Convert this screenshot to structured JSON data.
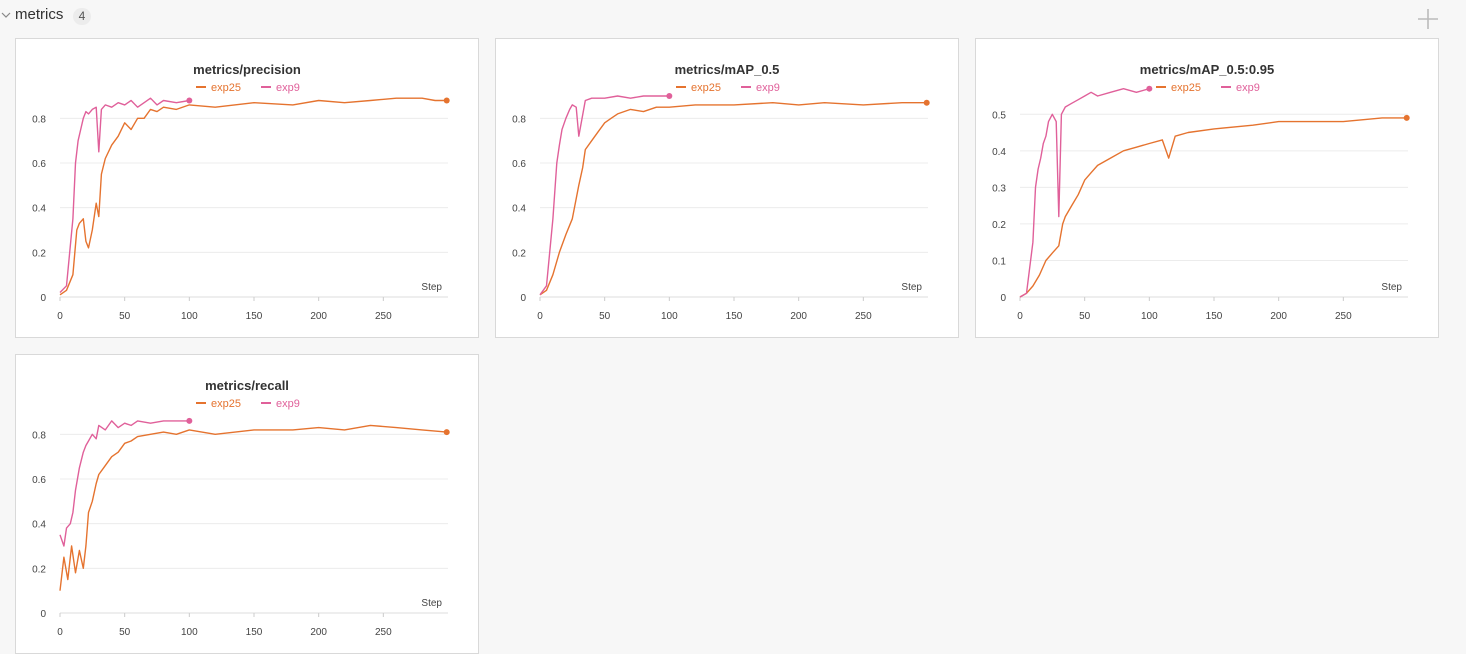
{
  "section": {
    "title": "metrics",
    "count": "4"
  },
  "colors": {
    "exp25": "#e5732f",
    "exp9": "#e0609a",
    "grid": "#ececec"
  },
  "icons": {
    "collapse": "chevron-down-icon",
    "add": "plus-icon"
  },
  "chart_data": [
    {
      "type": "line",
      "title": "metrics/precision",
      "xlabel": "Step",
      "xlim": [
        0,
        300
      ],
      "ylim": [
        0,
        0.9
      ],
      "xticks": [
        0,
        50,
        100,
        150,
        200,
        250
      ],
      "yticks": [
        0,
        0.2,
        0.4,
        0.6,
        0.8
      ],
      "ytick_labels": [
        "0",
        "0.2",
        "0.4",
        "0.6",
        "0.8"
      ],
      "legend": [
        "exp25",
        "exp9"
      ],
      "series": [
        {
          "name": "exp25",
          "x": [
            0,
            5,
            10,
            13,
            15,
            18,
            20,
            22,
            25,
            28,
            30,
            32,
            35,
            40,
            45,
            50,
            55,
            60,
            65,
            70,
            75,
            80,
            90,
            100,
            120,
            150,
            180,
            200,
            220,
            240,
            260,
            280,
            290,
            299
          ],
          "y": [
            0.01,
            0.03,
            0.1,
            0.3,
            0.33,
            0.35,
            0.25,
            0.22,
            0.3,
            0.42,
            0.36,
            0.55,
            0.62,
            0.68,
            0.72,
            0.78,
            0.75,
            0.8,
            0.8,
            0.84,
            0.83,
            0.85,
            0.84,
            0.86,
            0.85,
            0.87,
            0.86,
            0.88,
            0.87,
            0.88,
            0.89,
            0.89,
            0.88,
            0.88
          ]
        },
        {
          "name": "exp9",
          "x": [
            0,
            5,
            10,
            12,
            14,
            16,
            18,
            20,
            22,
            25,
            28,
            30,
            32,
            35,
            40,
            45,
            50,
            55,
            60,
            65,
            70,
            75,
            80,
            90,
            100
          ],
          "y": [
            0.02,
            0.05,
            0.35,
            0.6,
            0.7,
            0.75,
            0.8,
            0.83,
            0.82,
            0.84,
            0.85,
            0.65,
            0.84,
            0.86,
            0.85,
            0.87,
            0.86,
            0.88,
            0.85,
            0.87,
            0.89,
            0.86,
            0.88,
            0.87,
            0.88
          ]
        }
      ]
    },
    {
      "type": "line",
      "title": "metrics/mAP_0.5",
      "xlabel": "Step",
      "xlim": [
        0,
        300
      ],
      "ylim": [
        0,
        0.9
      ],
      "xticks": [
        0,
        50,
        100,
        150,
        200,
        250
      ],
      "yticks": [
        0,
        0.2,
        0.4,
        0.6,
        0.8
      ],
      "ytick_labels": [
        "0",
        "0.2",
        "0.4",
        "0.6",
        "0.8"
      ],
      "legend": [
        "exp25",
        "exp9"
      ],
      "series": [
        {
          "name": "exp25",
          "x": [
            0,
            5,
            10,
            15,
            20,
            25,
            30,
            33,
            35,
            40,
            45,
            50,
            55,
            60,
            70,
            80,
            90,
            100,
            120,
            150,
            180,
            200,
            220,
            250,
            280,
            299
          ],
          "y": [
            0.01,
            0.03,
            0.1,
            0.2,
            0.28,
            0.35,
            0.5,
            0.58,
            0.66,
            0.7,
            0.74,
            0.78,
            0.8,
            0.82,
            0.84,
            0.83,
            0.85,
            0.85,
            0.86,
            0.86,
            0.87,
            0.86,
            0.87,
            0.86,
            0.87,
            0.87
          ]
        },
        {
          "name": "exp9",
          "x": [
            0,
            5,
            10,
            13,
            15,
            17,
            20,
            23,
            25,
            28,
            30,
            35,
            40,
            50,
            60,
            70,
            80,
            90,
            100
          ],
          "y": [
            0.01,
            0.05,
            0.35,
            0.6,
            0.68,
            0.75,
            0.8,
            0.84,
            0.86,
            0.85,
            0.72,
            0.88,
            0.89,
            0.89,
            0.9,
            0.89,
            0.9,
            0.9,
            0.9
          ]
        }
      ]
    },
    {
      "type": "line",
      "title": "metrics/mAP_0.5:0.95",
      "xlabel": "Step",
      "xlim": [
        0,
        300
      ],
      "ylim": [
        0,
        0.55
      ],
      "xticks": [
        0,
        50,
        100,
        150,
        200,
        250
      ],
      "yticks": [
        0,
        0.1,
        0.2,
        0.3,
        0.4,
        0.5
      ],
      "ytick_labels": [
        "0",
        "0.1",
        "0.2",
        "0.3",
        "0.4",
        "0.5"
      ],
      "legend": [
        "exp25",
        "exp9"
      ],
      "series": [
        {
          "name": "exp25",
          "x": [
            0,
            5,
            10,
            15,
            20,
            25,
            30,
            33,
            35,
            40,
            45,
            50,
            55,
            60,
            70,
            80,
            90,
            100,
            110,
            115,
            120,
            130,
            150,
            180,
            200,
            220,
            250,
            280,
            299
          ],
          "y": [
            0.0,
            0.01,
            0.03,
            0.06,
            0.1,
            0.12,
            0.14,
            0.2,
            0.22,
            0.25,
            0.28,
            0.32,
            0.34,
            0.36,
            0.38,
            0.4,
            0.41,
            0.42,
            0.43,
            0.38,
            0.44,
            0.45,
            0.46,
            0.47,
            0.48,
            0.48,
            0.48,
            0.49,
            0.49
          ]
        },
        {
          "name": "exp9",
          "x": [
            0,
            5,
            10,
            12,
            14,
            16,
            18,
            20,
            22,
            25,
            28,
            30,
            32,
            35,
            40,
            45,
            50,
            55,
            60,
            70,
            80,
            90,
            100
          ],
          "y": [
            0.0,
            0.01,
            0.15,
            0.3,
            0.35,
            0.38,
            0.42,
            0.44,
            0.48,
            0.5,
            0.48,
            0.22,
            0.5,
            0.52,
            0.53,
            0.54,
            0.55,
            0.56,
            0.55,
            0.56,
            0.57,
            0.56,
            0.57
          ]
        }
      ]
    },
    {
      "type": "line",
      "title": "metrics/recall",
      "xlabel": "Step",
      "xlim": [
        0,
        300
      ],
      "ylim": [
        0,
        0.9
      ],
      "xticks": [
        0,
        50,
        100,
        150,
        200,
        250
      ],
      "yticks": [
        0,
        0.2,
        0.4,
        0.6,
        0.8
      ],
      "ytick_labels": [
        "0",
        "0.2",
        "0.4",
        "0.6",
        "0.8"
      ],
      "legend": [
        "exp25",
        "exp9"
      ],
      "series": [
        {
          "name": "exp25",
          "x": [
            0,
            3,
            6,
            9,
            12,
            15,
            18,
            20,
            22,
            25,
            28,
            30,
            35,
            40,
            45,
            50,
            55,
            60,
            70,
            80,
            90,
            100,
            120,
            150,
            180,
            200,
            220,
            240,
            260,
            280,
            299
          ],
          "y": [
            0.1,
            0.25,
            0.15,
            0.3,
            0.18,
            0.28,
            0.2,
            0.3,
            0.45,
            0.5,
            0.58,
            0.62,
            0.66,
            0.7,
            0.72,
            0.76,
            0.77,
            0.79,
            0.8,
            0.81,
            0.8,
            0.82,
            0.8,
            0.82,
            0.82,
            0.83,
            0.82,
            0.84,
            0.83,
            0.82,
            0.81
          ]
        },
        {
          "name": "exp9",
          "x": [
            0,
            3,
            5,
            8,
            10,
            12,
            15,
            18,
            20,
            22,
            25,
            28,
            30,
            35,
            40,
            45,
            50,
            55,
            60,
            70,
            80,
            90,
            100
          ],
          "y": [
            0.35,
            0.3,
            0.38,
            0.4,
            0.45,
            0.55,
            0.65,
            0.72,
            0.75,
            0.77,
            0.8,
            0.78,
            0.84,
            0.82,
            0.86,
            0.83,
            0.85,
            0.84,
            0.86,
            0.85,
            0.86,
            0.86,
            0.86
          ]
        }
      ]
    }
  ]
}
